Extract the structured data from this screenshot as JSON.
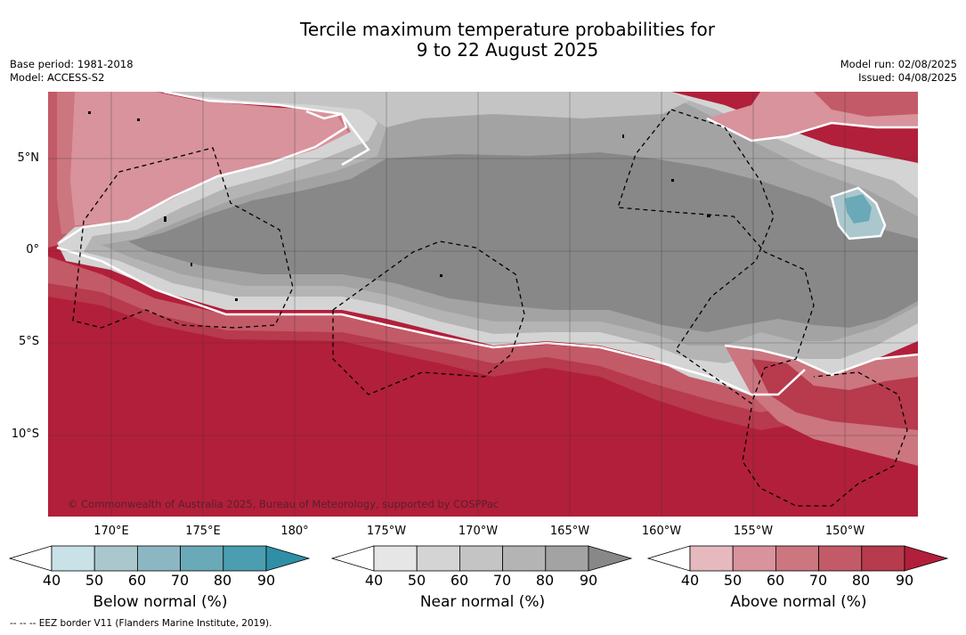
{
  "title": {
    "line1": "Tercile maximum temperature probabilities for",
    "line2": "9 to 22 August 2025"
  },
  "meta": {
    "base_period": "Base period: 1981-2018",
    "model": "Model: ACCESS-S2",
    "model_run": "Model run: 02/08/2025",
    "issued": "Issued: 04/08/2025"
  },
  "latitude_labels": [
    "5°N",
    "0°",
    "5°S",
    "10°S"
  ],
  "longitude_labels": [
    "170°E",
    "175°E",
    "180°",
    "175°W",
    "170°W",
    "165°W",
    "160°W",
    "155°W",
    "150°W"
  ],
  "copyright": "© Commonwealth of Australia 2025, Bureau of Meteorology, supported by COSPPac",
  "footnote": "--  --  -- EEZ border V11 (Flanders Marine Institute, 2019).",
  "colorbars": [
    {
      "label": "Below normal (%)",
      "ticks": [
        "40",
        "50",
        "60",
        "70",
        "80",
        "90"
      ],
      "colors": [
        "#c8e2e8",
        "#a9c7cd",
        "#8cb7c2",
        "#6aa9b7",
        "#4b9eb0",
        "#2f8fa6"
      ]
    },
    {
      "label": "Near normal (%)",
      "ticks": [
        "40",
        "50",
        "60",
        "70",
        "80",
        "90"
      ],
      "colors": [
        "#e6e6e6",
        "#d4d4d4",
        "#c4c4c4",
        "#b4b4b4",
        "#a3a3a3",
        "#888888"
      ]
    },
    {
      "label": "Above normal (%)",
      "ticks": [
        "40",
        "50",
        "60",
        "70",
        "80",
        "90"
      ],
      "colors": [
        "#e6b9bf",
        "#d8939c",
        "#cc7680",
        "#c35a67",
        "#b73a4d",
        "#b21f3a"
      ]
    }
  ]
}
